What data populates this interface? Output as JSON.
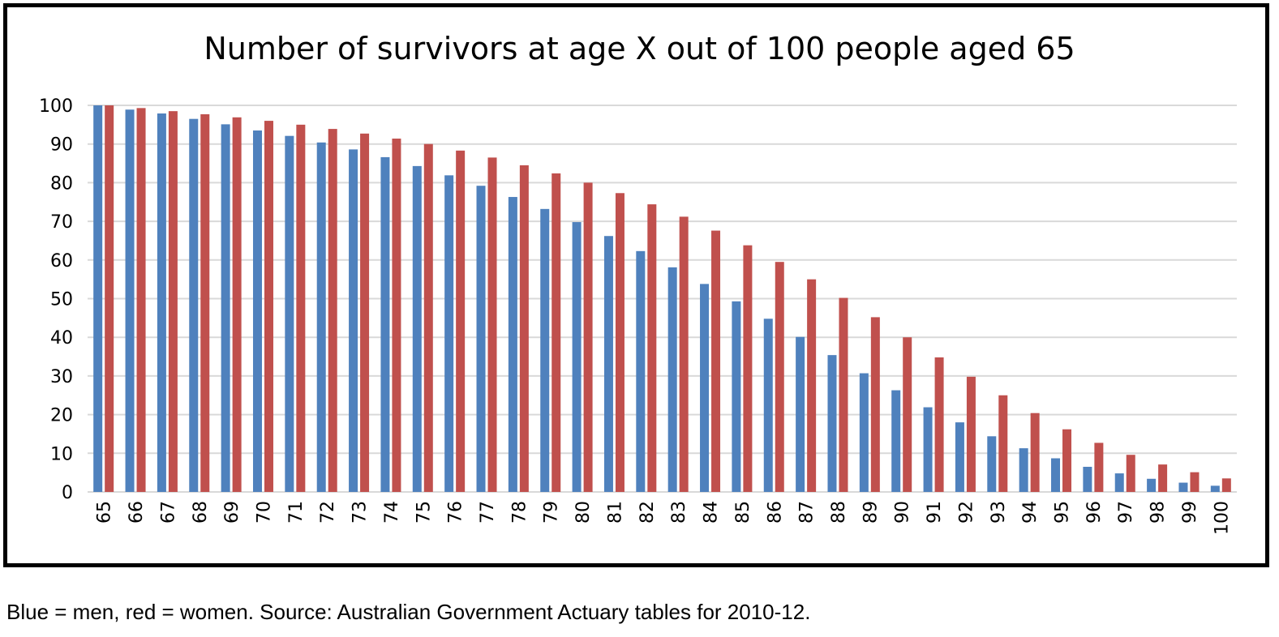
{
  "chart_data": {
    "type": "bar",
    "title": "Number of survivors at age X out of 100 people aged 65",
    "xlabel": "",
    "ylabel": "",
    "ylim": [
      0,
      100
    ],
    "yticks": [
      0,
      10,
      20,
      30,
      40,
      50,
      60,
      70,
      80,
      90,
      100
    ],
    "grid": true,
    "categories": [
      "65",
      "66",
      "67",
      "68",
      "69",
      "70",
      "71",
      "72",
      "73",
      "74",
      "75",
      "76",
      "77",
      "78",
      "79",
      "80",
      "81",
      "82",
      "83",
      "84",
      "85",
      "86",
      "87",
      "88",
      "89",
      "90",
      "91",
      "92",
      "93",
      "94",
      "95",
      "96",
      "97",
      "98",
      "99",
      "100"
    ],
    "series": [
      {
        "name": "men",
        "color": "#4f81bd",
        "values": [
          100,
          98.9,
          97.9,
          96.5,
          95.1,
          93.5,
          92.1,
          90.4,
          88.6,
          86.6,
          84.3,
          81.9,
          79.2,
          76.3,
          73.2,
          69.8,
          66.2,
          62.3,
          58.1,
          53.8,
          49.3,
          44.8,
          40.1,
          35.4,
          30.7,
          26.3,
          21.9,
          18.0,
          14.4,
          11.3,
          8.7,
          6.5,
          4.8,
          3.4,
          2.4,
          1.6
        ]
      },
      {
        "name": "women",
        "color": "#c0504d",
        "values": [
          100,
          99.3,
          98.5,
          97.7,
          96.9,
          96.0,
          95.0,
          93.9,
          92.7,
          91.4,
          90.0,
          88.3,
          86.5,
          84.5,
          82.4,
          80.0,
          77.3,
          74.4,
          71.2,
          67.6,
          63.8,
          59.5,
          55.0,
          50.2,
          45.2,
          40.0,
          34.8,
          29.8,
          25.0,
          20.4,
          16.2,
          12.7,
          9.6,
          7.1,
          5.1,
          3.5
        ]
      }
    ]
  },
  "caption": "Blue = men, red = women. Source: Australian Government Actuary tables for 2010-12."
}
